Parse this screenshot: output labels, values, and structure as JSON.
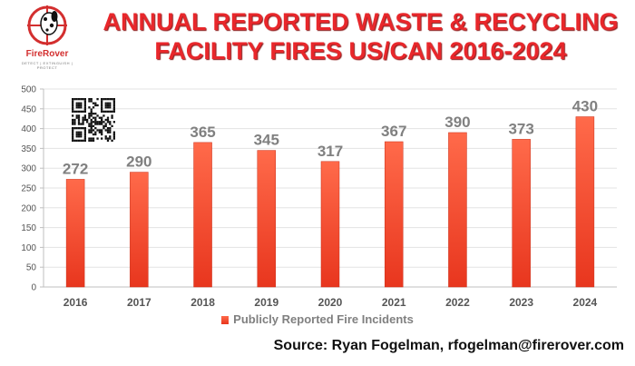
{
  "logo": {
    "name": "FireRover",
    "tagline": "DETECT | EXTINGUISH | PROTECT"
  },
  "title": {
    "line1": "ANNUAL REPORTED WASTE & RECYCLING",
    "line2": "FACILITY FIRES US/CAN 2016-2024"
  },
  "source": "Source: Ryan Fogelman, rfogelman@firerover.com",
  "colors": {
    "bar_top": "#ff6a4a",
    "bar_bottom": "#e8361e",
    "title": "#e8272b",
    "labels": "#808080"
  },
  "chart_data": {
    "type": "bar",
    "title": "ANNUAL REPORTED WASTE & RECYCLING FACILITY FIRES US/CAN 2016-2024",
    "categories": [
      "2016",
      "2017",
      "2018",
      "2019",
      "2020",
      "2021",
      "2022",
      "2023",
      "2024"
    ],
    "series": [
      {
        "name": "Publicly Reported Fire Incidents",
        "values": [
          272,
          290,
          365,
          345,
          317,
          367,
          390,
          373,
          430
        ]
      }
    ],
    "ylim": [
      0,
      500
    ],
    "yticks": [
      0,
      50,
      100,
      150,
      200,
      250,
      300,
      350,
      400,
      450,
      500
    ],
    "grid": true,
    "legend": "bottom"
  }
}
